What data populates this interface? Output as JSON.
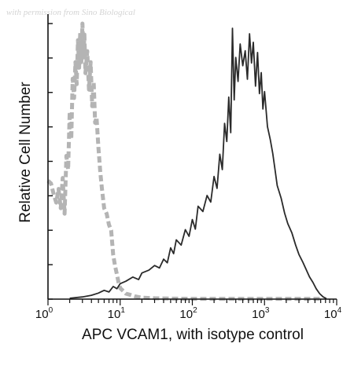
{
  "watermark": "with permission from Sino Biological",
  "chart_data": {
    "type": "line",
    "title": "",
    "xlabel": "APC VCAM1, with isotype control",
    "ylabel": "Relative Cell Number",
    "x_scale": "log",
    "xlim": [
      1,
      10000
    ],
    "ylim": [
      0,
      100
    ],
    "grid": false,
    "x_ticks": [
      {
        "base": "10",
        "exp": "0",
        "value": 1
      },
      {
        "base": "10",
        "exp": "1",
        "value": 10
      },
      {
        "base": "10",
        "exp": "2",
        "value": 100
      },
      {
        "base": "10",
        "exp": "3",
        "value": 1000
      },
      {
        "base": "10",
        "exp": "4",
        "value": 10000
      }
    ],
    "y_ticks": [
      0,
      12.5,
      25,
      37.5,
      50,
      62.5,
      75,
      87.5,
      100
    ],
    "series": [
      {
        "role": "isotype control",
        "style": "dashed",
        "color": "#b4b4b4",
        "x": [
          1.0,
          1.1,
          1.2,
          1.3,
          1.4,
          1.5,
          1.6,
          1.7,
          1.8,
          1.9,
          2.0,
          2.1,
          2.2,
          2.3,
          2.4,
          2.5,
          2.6,
          2.7,
          2.8,
          2.9,
          3.0,
          3.1,
          3.2,
          3.3,
          3.5,
          3.7,
          3.9,
          4.1,
          4.3,
          4.5,
          4.7,
          5.0,
          5.3,
          5.6,
          6.0,
          6.5,
          7.0,
          7.5,
          8.0,
          8.5,
          9.0,
          9.5,
          10,
          11,
          12,
          14,
          16,
          20,
          30,
          50,
          100,
          300,
          1000,
          3000,
          6000
        ],
        "y": [
          43,
          42,
          38,
          35,
          40,
          33,
          44,
          31,
          52,
          47,
          68,
          58,
          80,
          73,
          86,
          78,
          94,
          84,
          97,
          86,
          100,
          88,
          96,
          82,
          90,
          76,
          86,
          70,
          79,
          64,
          66,
          55,
          46,
          40,
          33,
          31,
          27,
          25,
          16,
          12,
          9,
          6,
          4,
          3,
          2,
          1.5,
          1,
          0.5,
          0.3,
          0.2,
          0.1,
          0.1,
          0.1,
          0.1,
          0.1
        ]
      },
      {
        "role": "APC VCAM1",
        "style": "solid",
        "color": "#2a2a2a",
        "x": [
          2,
          3,
          4,
          5,
          6,
          7,
          8,
          9,
          10,
          12,
          15,
          18,
          20,
          25,
          30,
          35,
          40,
          45,
          50,
          55,
          60,
          70,
          80,
          90,
          100,
          110,
          120,
          140,
          160,
          180,
          200,
          220,
          240,
          260,
          280,
          300,
          320,
          340,
          360,
          380,
          400,
          430,
          460,
          500,
          540,
          580,
          620,
          660,
          700,
          750,
          800,
          850,
          900,
          950,
          1000,
          1100,
          1200,
          1300,
          1400,
          1500,
          1700,
          1900,
          2100,
          2400,
          2700,
          3000,
          3400,
          3800,
          4200,
          4700,
          5200,
          5800,
          6500,
          7200
        ],
        "y": [
          0.3,
          0.8,
          1.4,
          2.2,
          3.2,
          2.6,
          4.6,
          3.8,
          5.6,
          6.5,
          8.0,
          7.1,
          9.5,
          10.5,
          12.2,
          11.3,
          14.5,
          13.2,
          18.6,
          16.5,
          21.5,
          19.6,
          25.2,
          22.8,
          28.9,
          25.4,
          33.7,
          31.8,
          37.6,
          35.2,
          44.5,
          40.2,
          52.6,
          47.0,
          63.8,
          57.2,
          73.3,
          60.4,
          98.3,
          72.3,
          87.7,
          79.0,
          92.6,
          84.7,
          90.1,
          79.8,
          96.3,
          85.7,
          93.2,
          77.3,
          89.5,
          74.6,
          82.2,
          69.0,
          75.3,
          62.6,
          58.0,
          52.9,
          46.8,
          41.2,
          36.6,
          31.2,
          27.4,
          24.0,
          19.6,
          16.2,
          13.4,
          10.6,
          8.1,
          6.0,
          3.8,
          2.0,
          0.8,
          0.2
        ]
      }
    ]
  }
}
